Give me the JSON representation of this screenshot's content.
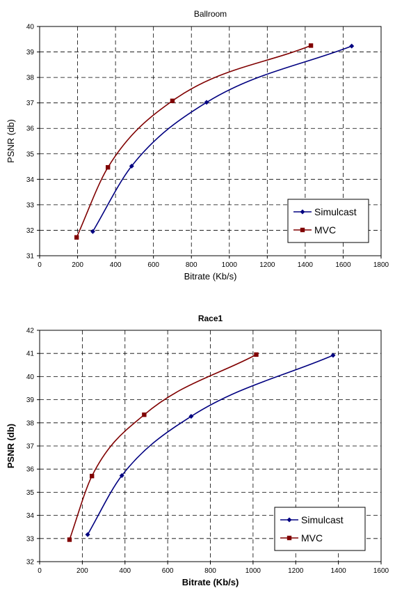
{
  "chart_data": [
    {
      "type": "line",
      "title": "Ballroom",
      "xlabel": "Bitrate (Kb/s)",
      "ylabel": "PSNR (db)",
      "xlim": [
        0,
        1800
      ],
      "ylim": [
        31,
        40
      ],
      "xticks": [
        "0",
        "200",
        "400",
        "600",
        "800",
        "1000",
        "1200",
        "1400",
        "1600",
        "1800"
      ],
      "yticks": [
        "31",
        "32",
        "33",
        "34",
        "35",
        "36",
        "37",
        "38",
        "39",
        "40"
      ],
      "grid": true,
      "legend": "bottom-right",
      "series": [
        {
          "name": "Simulcast",
          "color": "#000080",
          "marker": "diamond",
          "x": [
            280,
            485,
            880,
            1645
          ],
          "y": [
            31.95,
            34.52,
            37.02,
            39.23
          ]
        },
        {
          "name": "MVC",
          "color": "#800000",
          "marker": "square",
          "x": [
            195,
            360,
            700,
            1430
          ],
          "y": [
            31.72,
            34.47,
            37.08,
            39.25
          ]
        }
      ]
    },
    {
      "type": "line",
      "title": "Race1",
      "xlabel": "Bitrate (Kb/s)",
      "ylabel": "PSNR (db)",
      "xlim": [
        0,
        1600
      ],
      "ylim": [
        32,
        42
      ],
      "xticks": [
        "0",
        "200",
        "400",
        "600",
        "800",
        "1000",
        "1200",
        "1400",
        "1600"
      ],
      "yticks": [
        "32",
        "33",
        "34",
        "35",
        "36",
        "37",
        "38",
        "39",
        "40",
        "41",
        "42"
      ],
      "grid": true,
      "legend": "bottom-right",
      "series": [
        {
          "name": "Simulcast",
          "color": "#000080",
          "marker": "diamond",
          "x": [
            225,
            385,
            710,
            1375
          ],
          "y": [
            33.17,
            35.72,
            38.28,
            40.92
          ]
        },
        {
          "name": "MVC",
          "color": "#800000",
          "marker": "square",
          "x": [
            140,
            245,
            490,
            1015
          ],
          "y": [
            32.95,
            35.7,
            38.35,
            40.95
          ]
        }
      ]
    }
  ]
}
